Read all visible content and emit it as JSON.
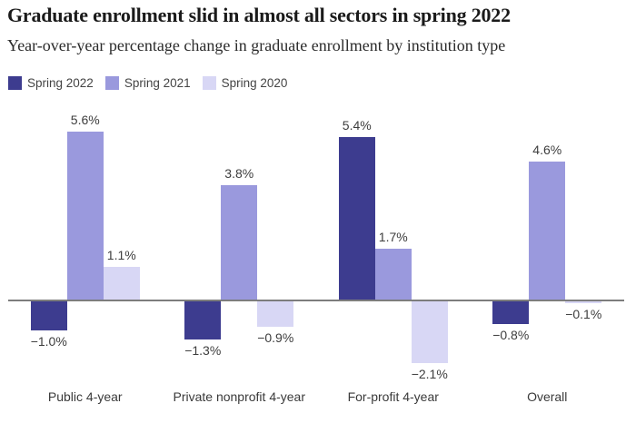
{
  "header": {
    "title": "Graduate enrollment slid in almost all sectors in spring 2022",
    "subtitle": "Year-over-year percentage change in graduate enrollment by institution type"
  },
  "colors": {
    "spring_2022": "#3d3c8f",
    "spring_2021": "#9a99dd",
    "spring_2020": "#d8d7f5",
    "axis_line": "#7d7d7d",
    "title_text": "#1a1a1a",
    "label_text": "#3d3d3d",
    "background": "#ffffff"
  },
  "legend": {
    "position": "top-left",
    "items": [
      {
        "label": "Spring 2022",
        "color": "#3d3c8f"
      },
      {
        "label": "Spring 2021",
        "color": "#9a99dd"
      },
      {
        "label": "Spring 2020",
        "color": "#d8d7f5"
      }
    ]
  },
  "chart_data": {
    "type": "bar",
    "title": "Graduate enrollment slid in almost all sectors in spring 2022",
    "subtitle": "Year-over-year percentage change in graduate enrollment by institution type",
    "categories": [
      "Public 4-year",
      "Private nonprofit 4-year",
      "For-profit 4-year",
      "Overall"
    ],
    "series": [
      {
        "name": "Spring 2022",
        "color": "#3d3c8f",
        "values": [
          -1.0,
          -1.3,
          5.4,
          -0.8
        ],
        "labels": [
          "−1.0%",
          "−1.3%",
          "5.4%",
          "−0.8%"
        ]
      },
      {
        "name": "Spring 2021",
        "color": "#9a99dd",
        "values": [
          5.6,
          3.8,
          1.7,
          4.6
        ],
        "labels": [
          "5.6%",
          "3.8%",
          "1.7%",
          "4.6%"
        ]
      },
      {
        "name": "Spring 2020",
        "color": "#d8d7f5",
        "values": [
          1.1,
          -0.9,
          -2.1,
          -0.1
        ],
        "labels": [
          "1.1%",
          "−0.9%",
          "−2.1%",
          "−0.1%"
        ]
      }
    ],
    "xlabel": "",
    "ylabel": "",
    "ylim": [
      -2.6,
      6.2
    ],
    "grid": false,
    "zero_line": true,
    "value_labels": true,
    "legend_position": "top-left"
  }
}
